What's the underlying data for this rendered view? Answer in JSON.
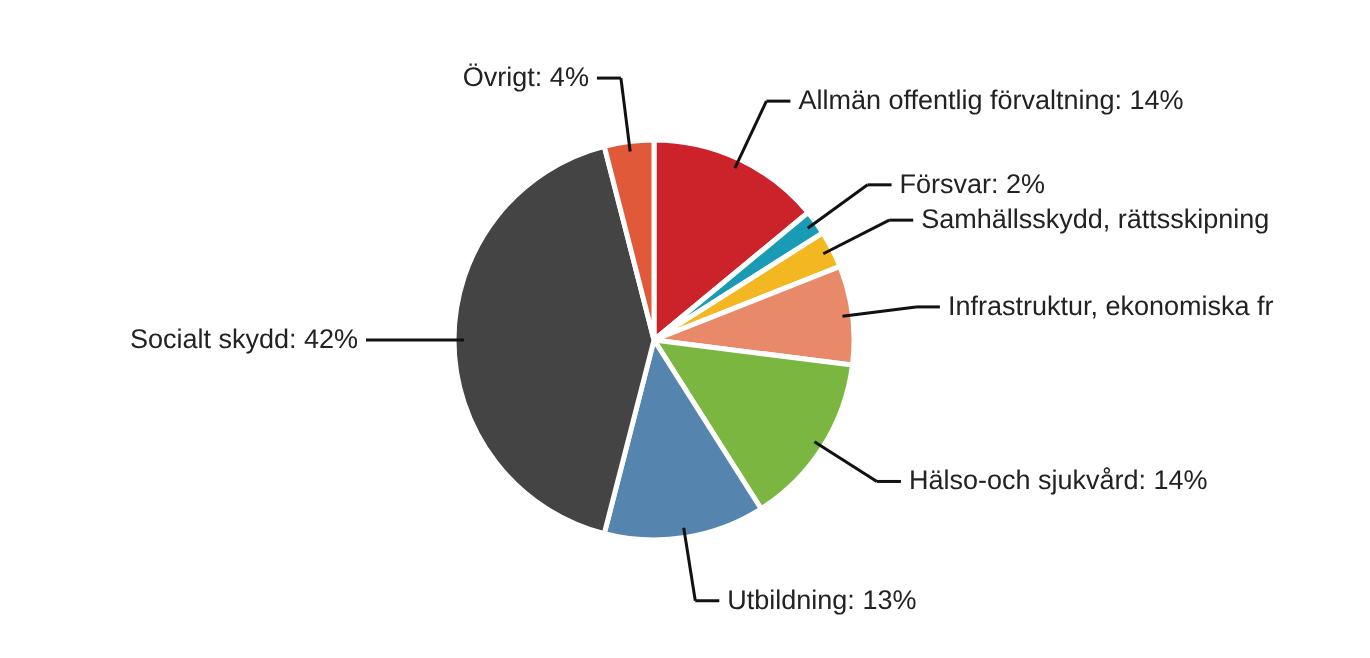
{
  "chart_data": {
    "type": "pie",
    "categories": [
      "Allmän offentlig förvaltning",
      "Försvar",
      "Samhällsskydd, rättsskipning",
      "Infrastruktur, ekonomiska fr",
      "Hälso-och sjukvård",
      "Utbildning",
      "Socialt skydd",
      "Övrigt"
    ],
    "values": [
      14,
      2,
      3,
      8,
      14,
      13,
      42,
      4
    ],
    "value_labels": [
      "14%",
      "2%",
      null,
      null,
      "14%",
      "13%",
      "42%",
      "4%"
    ],
    "colors": [
      "#cc2229",
      "#1a9bb5",
      "#f3b722",
      "#e8896a",
      "#7ab640",
      "#5585ae",
      "#444444",
      "#e05a3a"
    ]
  }
}
